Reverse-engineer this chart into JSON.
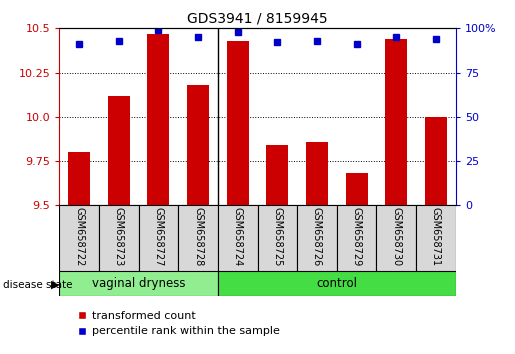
{
  "title": "GDS3941 / 8159945",
  "samples": [
    "GSM658722",
    "GSM658723",
    "GSM658727",
    "GSM658728",
    "GSM658724",
    "GSM658725",
    "GSM658726",
    "GSM658729",
    "GSM658730",
    "GSM658731"
  ],
  "bar_values": [
    9.8,
    10.12,
    10.47,
    10.18,
    10.43,
    9.84,
    9.86,
    9.68,
    10.44,
    10.0
  ],
  "percentile_values": [
    91,
    93,
    99,
    95,
    98,
    92,
    93,
    91,
    95,
    94
  ],
  "group_labels": [
    "vaginal dryness",
    "control"
  ],
  "group_counts": [
    4,
    6
  ],
  "vd_color": "#90EE90",
  "ctrl_color": "#44DD44",
  "ylim_left": [
    9.5,
    10.5
  ],
  "ylim_right": [
    0,
    100
  ],
  "yticks_left": [
    9.5,
    9.75,
    10.0,
    10.25,
    10.5
  ],
  "yticks_right": [
    0,
    25,
    50,
    75,
    100
  ],
  "bar_color": "#CC0000",
  "dot_color": "#0000CC",
  "background_color": "#ffffff",
  "legend_labels": [
    "transformed count",
    "percentile rank within the sample"
  ],
  "cell_color": "#D8D8D8"
}
